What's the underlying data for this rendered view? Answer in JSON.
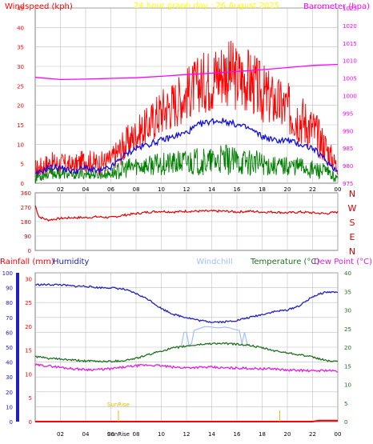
{
  "colors": {
    "panel_bg": "#ffffff",
    "frame": "#808080",
    "grid": "#c0c0c0",
    "wind_gust": "#ff0000",
    "wind_avg": "#1010e0",
    "wind_min": "#008000",
    "barometer": "#ff00ff",
    "title": "#ffff00",
    "direction": "#e00000",
    "rain": "#ff0000",
    "humidity": "#2020c0",
    "windchill": "#a0c0ff",
    "temperature": "#207020",
    "dewpoint": "#e020e0",
    "sun": "#e0c000",
    "axis_text": "#000000"
  },
  "chart_data": [
    {
      "type": "line",
      "title": "24 hour graph day : 26 August 2025",
      "left_axis_label": "Windspeed (kph)",
      "right_axis_label": "Barometer (hpa)",
      "x_ticks": [
        "02",
        "04",
        "06",
        "08",
        "10",
        "12",
        "14",
        "16",
        "18",
        "20",
        "22",
        "00"
      ],
      "left_ticks": [
        "0",
        "5",
        "10",
        "15",
        "20",
        "25",
        "30",
        "35",
        "40",
        "45"
      ],
      "right_ticks": [
        "975",
        "980",
        "985",
        "990",
        "995",
        "1000",
        "1005",
        "1010",
        "1015",
        "1020",
        "1025"
      ],
      "ylim_left": [
        0,
        45
      ],
      "ylim_right": [
        975,
        1025
      ],
      "xlim_hours": [
        0,
        24
      ],
      "gust_envelope": {
        "hours": [
          0,
          1,
          2,
          3,
          4,
          5,
          6,
          7,
          8,
          9,
          10,
          11,
          12,
          13,
          14,
          15,
          16,
          17,
          18,
          19,
          20,
          21,
          22,
          23,
          24
        ],
        "high": [
          6,
          8,
          8,
          7,
          9,
          8,
          9,
          14,
          17,
          20,
          25,
          27,
          30,
          33,
          36,
          38,
          36,
          35,
          31,
          28,
          26,
          24,
          20,
          14,
          6
        ],
        "low": [
          1,
          2,
          2,
          2,
          3,
          2,
          3,
          5,
          8,
          10,
          12,
          14,
          16,
          18,
          18,
          20,
          18,
          18,
          15,
          14,
          12,
          10,
          8,
          5,
          2
        ]
      },
      "average_wind": {
        "hours": [
          0,
          1,
          2,
          3,
          4,
          5,
          6,
          7,
          8,
          9,
          10,
          11,
          12,
          13,
          14,
          15,
          16,
          17,
          18,
          19,
          20,
          21,
          22,
          23,
          24
        ],
        "values": [
          2,
          4,
          4,
          3,
          4,
          3,
          4,
          7,
          9,
          10,
          11,
          12,
          13,
          15,
          16,
          16,
          15,
          14,
          12,
          11,
          11,
          10,
          9,
          6,
          3
        ]
      },
      "min_envelope": {
        "hours": [
          0,
          1,
          2,
          3,
          4,
          5,
          6,
          7,
          8,
          9,
          10,
          11,
          12,
          13,
          14,
          15,
          16,
          17,
          18,
          19,
          20,
          21,
          22,
          23,
          24
        ],
        "high": [
          3,
          4,
          4,
          3,
          4,
          3,
          4,
          6,
          7,
          7,
          8,
          8,
          9,
          9,
          9,
          10,
          9,
          9,
          8,
          7,
          7,
          7,
          6,
          5,
          2
        ],
        "low": [
          0,
          1,
          1,
          1,
          1,
          1,
          1,
          1,
          2,
          2,
          2,
          2,
          2,
          2,
          2,
          2,
          2,
          2,
          2,
          2,
          2,
          2,
          1,
          1,
          0
        ]
      },
      "barometer": {
        "hours": [
          0,
          2,
          4,
          6,
          8,
          10,
          12,
          14,
          16,
          18,
          20,
          22,
          24
        ],
        "values": [
          1005.2,
          1004.6,
          1004.7,
          1004.9,
          1005.1,
          1005.5,
          1006.0,
          1006.4,
          1006.9,
          1007.4,
          1008.0,
          1008.6,
          1008.9
        ]
      }
    },
    {
      "type": "line",
      "ticks": [
        "360",
        "270",
        "180",
        "90",
        "0"
      ],
      "compass": [
        "N",
        "W",
        "S",
        "E",
        "N"
      ],
      "ylim": [
        0,
        360
      ],
      "xlim_hours": [
        0,
        24
      ],
      "direction": {
        "hours": [
          0,
          0.3,
          1,
          2,
          3,
          4,
          5,
          6,
          7,
          8,
          9,
          10,
          11,
          12,
          13,
          14,
          15,
          16,
          17,
          18,
          19,
          20,
          21,
          22,
          23,
          24
        ],
        "values": [
          280,
          210,
          190,
          200,
          205,
          205,
          210,
          205,
          220,
          230,
          240,
          245,
          240,
          245,
          245,
          245,
          245,
          240,
          245,
          240,
          240,
          235,
          240,
          235,
          230,
          240
        ]
      }
    },
    {
      "type": "line",
      "labels": {
        "rainfall": "Rainfall (mm)",
        "humidity": "Humidity",
        "windchill": "Windchill",
        "temperature": "Temperature (°C)",
        "dewpoint": "Dew Point (°C)"
      },
      "x_ticks": [
        "02",
        "04",
        "06",
        "08",
        "10",
        "12",
        "14",
        "16",
        "18",
        "20",
        "22",
        "00"
      ],
      "sun_labels": [
        "SunRise",
        "SunRise"
      ],
      "humidity_ticks": [
        "0",
        "10",
        "20",
        "30",
        "40",
        "50",
        "60",
        "70",
        "80",
        "90",
        "100"
      ],
      "rain_ticks": [
        "0",
        "5",
        "10",
        "15",
        "20",
        "25",
        "30"
      ],
      "temp_ticks": [
        "0",
        "5",
        "10",
        "15",
        "20",
        "25",
        "30",
        "35",
        "40"
      ],
      "ylim_humidity": [
        0,
        100
      ],
      "ylim_temp": [
        0,
        40
      ],
      "xlim_hours": [
        0,
        24
      ],
      "sunrise_hour": 6.6,
      "sunset_hour": 19.4,
      "humidity": {
        "hours": [
          0,
          1,
          2,
          3,
          4,
          5,
          6,
          7,
          8,
          9,
          10,
          11,
          12,
          13,
          14,
          15,
          16,
          17,
          18,
          19,
          20,
          21,
          22,
          23,
          24
        ],
        "values": [
          92,
          92,
          92,
          91,
          91,
          90,
          90,
          89,
          86,
          82,
          76,
          72,
          70,
          68,
          67,
          67,
          68,
          70,
          72,
          74,
          75,
          78,
          84,
          87,
          87
        ]
      },
      "temperature": {
        "hours": [
          0,
          1,
          2,
          3,
          4,
          5,
          6,
          7,
          8,
          9,
          10,
          11,
          12,
          13,
          14,
          15,
          16,
          17,
          18,
          19,
          20,
          21,
          22,
          23,
          24
        ],
        "values": [
          17.5,
          17.0,
          16.8,
          16.5,
          16.3,
          16.2,
          16.2,
          16.4,
          17.0,
          18.0,
          19.0,
          19.8,
          20.3,
          20.7,
          21.0,
          21.0,
          20.8,
          20.5,
          19.8,
          19.0,
          18.5,
          18.0,
          17.3,
          16.5,
          16.0
        ]
      },
      "dewpoint": {
        "hours": [
          0,
          1,
          2,
          3,
          4,
          5,
          6,
          7,
          8,
          9,
          10,
          11,
          12,
          13,
          14,
          15,
          16,
          17,
          18,
          19,
          20,
          21,
          22,
          23,
          24
        ],
        "values": [
          15.2,
          15.0,
          14.6,
          14.2,
          14.0,
          14.0,
          14.2,
          14.6,
          15.0,
          15.2,
          15.0,
          14.6,
          14.5,
          14.6,
          14.6,
          14.4,
          14.4,
          14.3,
          14.2,
          14.2,
          13.8,
          13.8,
          13.6,
          13.8,
          13.5
        ]
      },
      "windchill": {
        "hours": [
          11.6,
          11.8,
          12.0,
          12.2,
          12.4,
          12.6,
          13.0,
          13.4,
          13.8,
          14.2,
          14.6,
          15.0,
          15.4,
          15.8,
          16.2,
          16.4,
          16.6,
          16.8
        ],
        "values": [
          20.5,
          24.0,
          24.0,
          20.5,
          21.0,
          24.5,
          25.0,
          25.5,
          25.5,
          25.3,
          25.2,
          25.4,
          25.2,
          24.8,
          24.5,
          21.0,
          24.0,
          21.0
        ]
      },
      "rain": {
        "hours": [
          0,
          22,
          22.5,
          24
        ],
        "values": [
          0,
          0,
          0.2,
          0.2
        ]
      }
    }
  ]
}
